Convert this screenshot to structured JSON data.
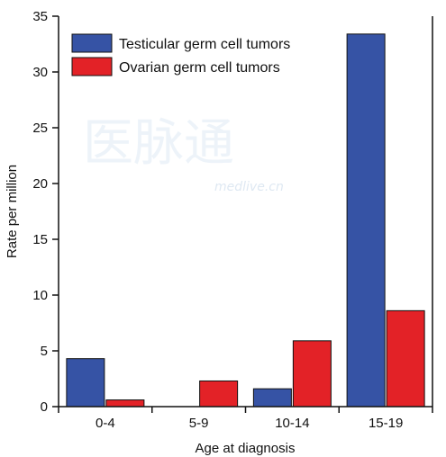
{
  "chart_data": {
    "type": "bar",
    "categories": [
      "0-4",
      "5-9",
      "10-14",
      "15-19"
    ],
    "series": [
      {
        "name": "Testicular germ cell tumors",
        "color": "#3653a5",
        "values": [
          4.3,
          0,
          1.6,
          33.4
        ]
      },
      {
        "name": "Ovarian germ cell tumors",
        "color": "#e32227",
        "values": [
          0.6,
          2.3,
          5.9,
          8.6
        ]
      }
    ],
    "xlabel": "Age at diagnosis",
    "ylabel": "Rate per million",
    "ylim": [
      0,
      35
    ],
    "yticks": [
      0,
      5,
      10,
      15,
      20,
      25,
      30,
      35
    ],
    "legend_position": "top-left",
    "grid": false
  },
  "watermark": {
    "text_cn": "医脉通",
    "text_en": "medlive.cn"
  }
}
